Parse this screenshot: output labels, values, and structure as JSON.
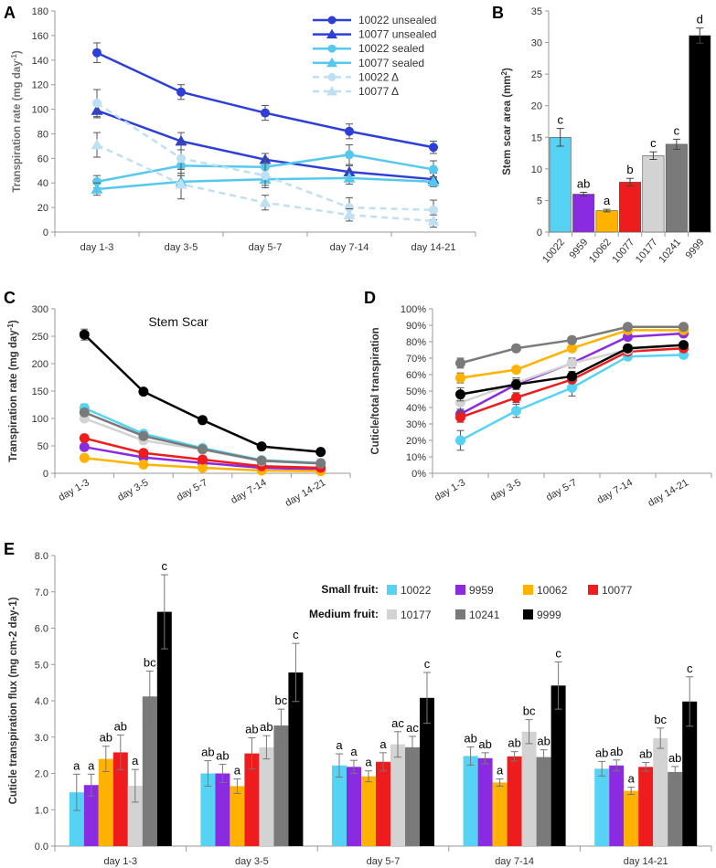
{
  "panel_labels": {
    "a": "A",
    "b": "B",
    "c": "C",
    "d": "D",
    "e": "E"
  },
  "chart_data": [
    {
      "id": "A",
      "type": "line",
      "ylabel": "Transpiration rate (mg day",
      "ylabel_sup": "-1",
      "ylabel_end": ")",
      "ylim": [
        0,
        180
      ],
      "yticks": [
        0,
        20,
        40,
        60,
        80,
        100,
        120,
        140,
        160,
        180
      ],
      "categories": [
        "day 1-3",
        "day 3-5",
        "day 5-7",
        "day 7-14",
        "day 14-21"
      ],
      "legend_position": "top-right",
      "series": [
        {
          "name": "10022 unsealed",
          "color": "#2d3fd6",
          "marker": "circle",
          "dashed": false,
          "values": [
            146,
            114,
            97,
            82,
            69
          ],
          "errors": [
            8,
            6,
            6,
            6,
            5
          ]
        },
        {
          "name": "10077 unsealed",
          "color": "#2d3fd6",
          "marker": "triangle",
          "dashed": false,
          "values": [
            99,
            74,
            59,
            49,
            43
          ],
          "errors": [
            6,
            7,
            5,
            5,
            5
          ]
        },
        {
          "name": "10022 sealed",
          "color": "#56c8f0",
          "marker": "circle",
          "dashed": false,
          "values": [
            41,
            54,
            53,
            63,
            51
          ],
          "errors": [
            5,
            8,
            7,
            8,
            7
          ]
        },
        {
          "name": "10077 sealed",
          "color": "#56c8f0",
          "marker": "triangle",
          "dashed": false,
          "values": [
            35,
            41,
            43,
            44,
            41
          ],
          "errors": [
            5,
            5,
            5,
            5,
            4
          ]
        },
        {
          "name": "10022 Δ",
          "color": "#bfe0f3",
          "marker": "circle",
          "dashed": true,
          "values": [
            105,
            60,
            46,
            20,
            18
          ],
          "errors": [
            11,
            12,
            10,
            8,
            8
          ]
        },
        {
          "name": "10077 Δ",
          "color": "#bfe0f3",
          "marker": "triangle",
          "dashed": true,
          "values": [
            71,
            39,
            24,
            14,
            9
          ],
          "errors": [
            10,
            12,
            6,
            5,
            5
          ]
        }
      ]
    },
    {
      "id": "B",
      "type": "bar",
      "ylabel": "Stem scar area (mm",
      "ylabel_sup": "2",
      "ylabel_end": ")",
      "ylim": [
        0,
        35
      ],
      "yticks": [
        0,
        5,
        10,
        15,
        20,
        25,
        30,
        35
      ],
      "categories": [
        "10022",
        "9959",
        "10062",
        "10077",
        "10177",
        "10241",
        "9999"
      ],
      "values": [
        15.0,
        6.0,
        3.4,
        7.9,
        12.1,
        13.9,
        31.1
      ],
      "errors": [
        1.4,
        0.3,
        0.2,
        0.6,
        0.6,
        0.8,
        1.2
      ],
      "letters": [
        "c",
        "ab",
        "a",
        "b",
        "c",
        "c",
        "d"
      ],
      "colors": [
        "#56d2f5",
        "#8a2be2",
        "#ffb300",
        "#ee1c1c",
        "#d3d3d3",
        "#7a7a7a",
        "#000000"
      ]
    },
    {
      "id": "C",
      "type": "line",
      "title": "Stem Scar",
      "ylabel": "Transpiration rate (mg day",
      "ylabel_sup": "-1",
      "ylabel_end": ")",
      "ylim": [
        0,
        300
      ],
      "yticks": [
        0,
        50,
        100,
        150,
        200,
        250,
        300
      ],
      "categories": [
        "day 1-3",
        "day 3-5",
        "day 5-7",
        "day 7-14",
        "day 14-21"
      ],
      "series": [
        {
          "name": "10022",
          "color": "#56d2f5",
          "values": [
            119,
            72,
            46,
            24,
            19
          ],
          "errors": [
            7,
            3,
            3,
            2,
            2
          ]
        },
        {
          "name": "9959",
          "color": "#8a2be2",
          "values": [
            48,
            29,
            19,
            10,
            7
          ],
          "errors": [
            2,
            2,
            1,
            1,
            1
          ]
        },
        {
          "name": "10062",
          "color": "#ffb300",
          "values": [
            28,
            16,
            10,
            5,
            4
          ],
          "errors": [
            2,
            1,
            1,
            1,
            1
          ]
        },
        {
          "name": "10077",
          "color": "#ee1c1c",
          "values": [
            64,
            37,
            25,
            13,
            10
          ],
          "errors": [
            3,
            2,
            2,
            1,
            1
          ]
        },
        {
          "name": "10177",
          "color": "#d3d3d3",
          "values": [
            100,
            60,
            43,
            22,
            18
          ],
          "errors": [
            5,
            4,
            3,
            2,
            2
          ]
        },
        {
          "name": "10241",
          "color": "#7a7a7a",
          "values": [
            111,
            68,
            44,
            23,
            18
          ],
          "errors": [
            6,
            4,
            3,
            2,
            2
          ]
        },
        {
          "name": "9999",
          "color": "#000000",
          "values": [
            253,
            149,
            97,
            49,
            39
          ],
          "errors": [
            10,
            4,
            3,
            3,
            2
          ]
        }
      ]
    },
    {
      "id": "D",
      "type": "line",
      "ylabel": "Cuticle/total transpiration",
      "ylim": [
        0,
        100
      ],
      "yticks": [
        "0%",
        "10%",
        "20%",
        "30%",
        "40%",
        "50%",
        "60%",
        "70%",
        "80%",
        "90%",
        "100%"
      ],
      "categories": [
        "day 1-3",
        "day 3-5",
        "day 5-7",
        "day 7-14",
        "day 14-21"
      ],
      "series": [
        {
          "name": "10022",
          "color": "#56d2f5",
          "values": [
            20,
            38,
            52,
            71,
            72
          ],
          "errors": [
            6,
            4,
            5,
            2,
            2
          ]
        },
        {
          "name": "9959",
          "color": "#8a2be2",
          "values": [
            36,
            54,
            67,
            83,
            85
          ],
          "errors": [
            3,
            3,
            2,
            1,
            1
          ]
        },
        {
          "name": "10062",
          "color": "#ffb300",
          "values": [
            58,
            63,
            76,
            87,
            87
          ],
          "errors": [
            3,
            2,
            2,
            1,
            1
          ]
        },
        {
          "name": "10077",
          "color": "#ee1c1c",
          "values": [
            34,
            46,
            57,
            74,
            76
          ],
          "errors": [
            3,
            3,
            2,
            1,
            1
          ]
        },
        {
          "name": "10177",
          "color": "#d3d3d3",
          "values": [
            43,
            55,
            67,
            75,
            78
          ],
          "errors": [
            5,
            3,
            3,
            2,
            2
          ]
        },
        {
          "name": "10241",
          "color": "#7a7a7a",
          "values": [
            67,
            76,
            81,
            89,
            89
          ],
          "errors": [
            3,
            2,
            2,
            1,
            1
          ]
        },
        {
          "name": "9999",
          "color": "#000000",
          "values": [
            48,
            54,
            59,
            76,
            78
          ],
          "errors": [
            4,
            3,
            3,
            2,
            2
          ]
        }
      ]
    },
    {
      "id": "E",
      "type": "bar",
      "ylabel": "Cuticle transpiration flux (mg cm-2 day-1)",
      "ylim": [
        0,
        8
      ],
      "yticks": [
        "0.0",
        "1.0",
        "2.0",
        "3.0",
        "4.0",
        "5.0",
        "6.0",
        "7.0",
        "8.0"
      ],
      "categories": [
        "day 1-3",
        "day 3-5",
        "day 5-7",
        "day 7-14",
        "day 14-21"
      ],
      "legend": {
        "small_label": "Small fruit:",
        "medium_label": "Medium fruit:",
        "small": [
          "10022",
          "9959",
          "10062",
          "10077"
        ],
        "medium": [
          "10177",
          "10241",
          "9999"
        ]
      },
      "series": [
        {
          "name": "10022",
          "color": "#56d2f5",
          "values": [
            1.48,
            2.0,
            2.22,
            2.48,
            2.13
          ],
          "errors": [
            0.5,
            0.35,
            0.32,
            0.25,
            0.2
          ],
          "letters": [
            "a",
            "ab",
            "a",
            "ab",
            "ab"
          ]
        },
        {
          "name": "9959",
          "color": "#8a2be2",
          "values": [
            1.68,
            2.0,
            2.18,
            2.42,
            2.22
          ],
          "errors": [
            0.3,
            0.25,
            0.18,
            0.15,
            0.15
          ],
          "letters": [
            "a",
            "ab",
            "a",
            "ab",
            "ab"
          ]
        },
        {
          "name": "10062",
          "color": "#ffb300",
          "values": [
            2.4,
            1.65,
            1.92,
            1.75,
            1.52
          ],
          "errors": [
            0.35,
            0.2,
            0.15,
            0.1,
            0.1
          ],
          "letters": [
            "ab",
            "a",
            "a",
            "a",
            "a"
          ]
        },
        {
          "name": "10077",
          "color": "#ee1c1c",
          "values": [
            2.58,
            2.55,
            2.32,
            2.47,
            2.18
          ],
          "errors": [
            0.48,
            0.43,
            0.25,
            0.13,
            0.12
          ],
          "letters": [
            "ab",
            "ab",
            "a",
            "ab",
            "ab"
          ]
        },
        {
          "name": "10177",
          "color": "#d3d3d3",
          "values": [
            1.66,
            2.72,
            2.8,
            3.15,
            2.97
          ],
          "errors": [
            0.45,
            0.32,
            0.35,
            0.33,
            0.28
          ],
          "letters": [
            "a",
            "ab",
            "ac",
            "bc",
            "bc"
          ]
        },
        {
          "name": "10241",
          "color": "#7a7a7a",
          "values": [
            4.12,
            3.32,
            2.72,
            2.45,
            2.04
          ],
          "errors": [
            0.7,
            0.45,
            0.3,
            0.2,
            0.15
          ],
          "letters": [
            "bc",
            "bc",
            "ac",
            "ab",
            "ab"
          ]
        },
        {
          "name": "9999",
          "color": "#000000",
          "values": [
            6.45,
            4.78,
            4.08,
            4.42,
            3.98
          ],
          "errors": [
            1.02,
            0.8,
            0.7,
            0.65,
            0.68
          ],
          "letters": [
            "c",
            "c",
            "c",
            "c",
            "c"
          ]
        }
      ]
    }
  ]
}
